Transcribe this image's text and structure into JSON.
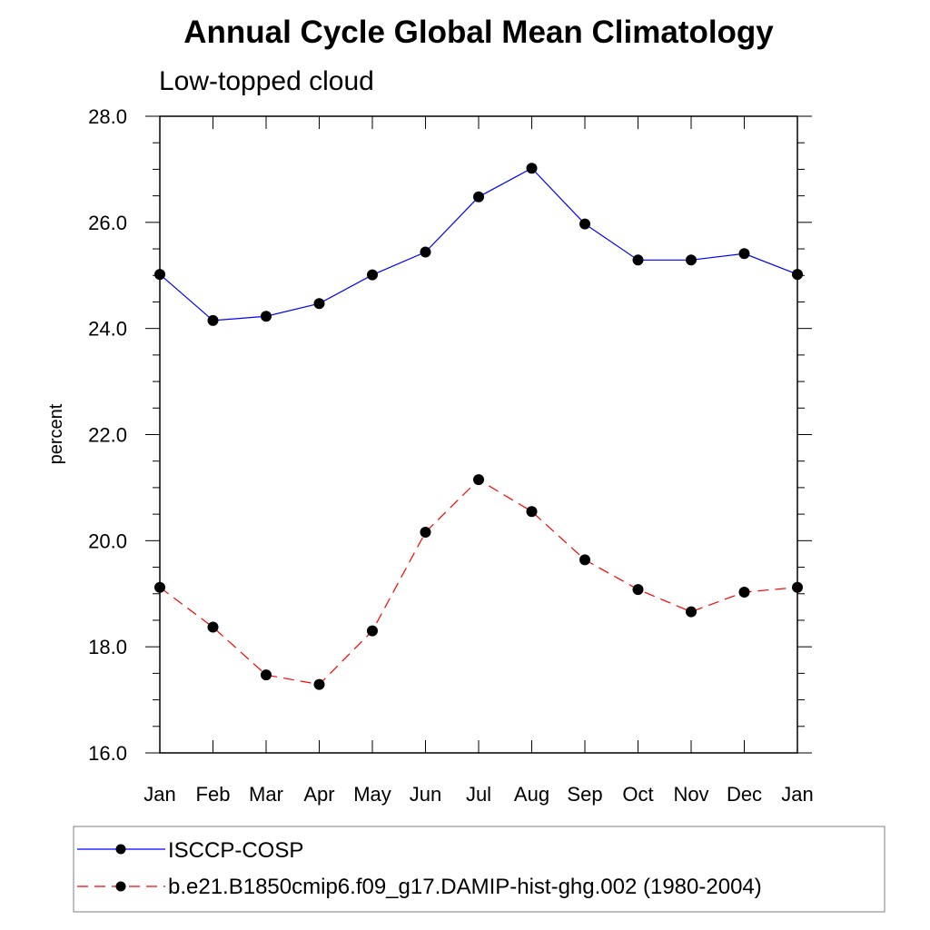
{
  "chart_data": {
    "type": "line",
    "title": "Annual Cycle Global Mean Climatology",
    "subtitle": "Low-topped cloud",
    "xlabel": "",
    "ylabel": "percent",
    "categories": [
      "Jan",
      "Feb",
      "Mar",
      "Apr",
      "May",
      "Jun",
      "Jul",
      "Aug",
      "Sep",
      "Oct",
      "Nov",
      "Dec",
      "Jan"
    ],
    "ylim": [
      16.0,
      28.0
    ],
    "yticks": [
      "16.0",
      "18.0",
      "20.0",
      "22.0",
      "24.0",
      "26.0",
      "28.0"
    ],
    "grid": false,
    "legend_position": "bottom",
    "series": [
      {
        "name": "ISCCP-COSP",
        "color": "#0000ff",
        "line_style": "solid",
        "marker": "filled-circle",
        "values": [
          25.02,
          24.15,
          24.23,
          24.47,
          25.01,
          25.44,
          26.48,
          27.02,
          25.97,
          25.29,
          25.29,
          25.41,
          25.02
        ]
      },
      {
        "name": "b.e21.B1850cmip6.f09_g17.DAMIP-hist-ghg.002 (1980-2004)",
        "color": "#ff0000",
        "line_style": "dashed",
        "marker": "filled-circle",
        "values": [
          19.12,
          18.37,
          17.47,
          17.29,
          18.3,
          20.16,
          21.15,
          20.55,
          19.64,
          19.08,
          18.66,
          19.03,
          19.12
        ]
      }
    ]
  }
}
